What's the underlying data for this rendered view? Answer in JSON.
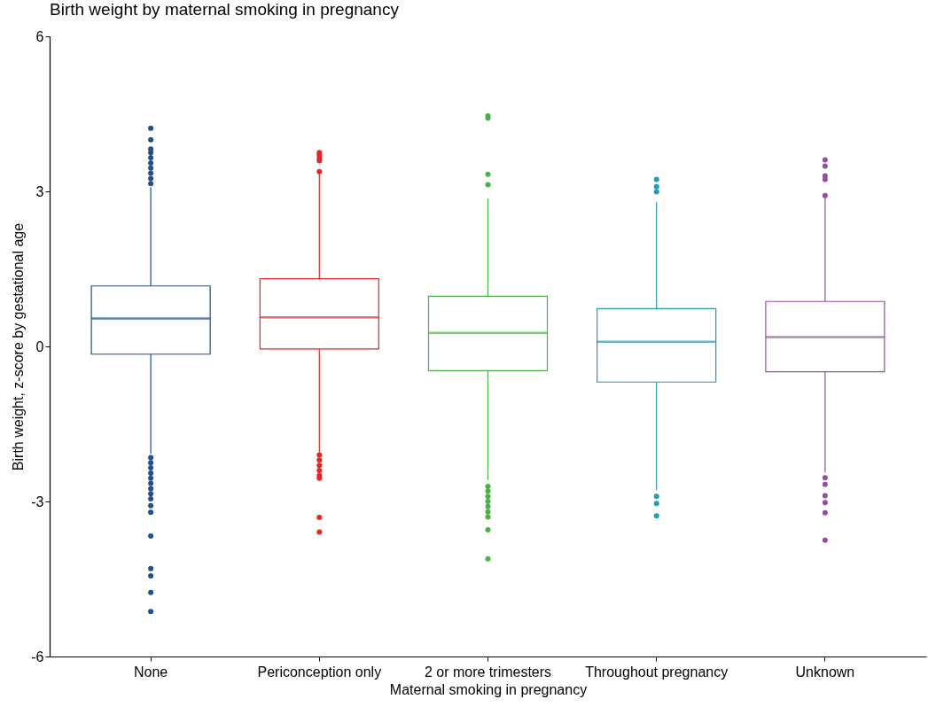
{
  "chart_data": {
    "type": "box",
    "title": "Birth weight by maternal smoking in pregnancy",
    "xlabel": "Maternal smoking in pregnancy",
    "ylabel": "Birth weight, z-score by gestational age",
    "categories": [
      "None",
      "Periconception only",
      "2 or more trimesters",
      "Throughout pregnancy",
      "Unknown"
    ],
    "colors": [
      "#204f8b",
      "#e32726",
      "#4daf4a",
      "#2b98b3",
      "#944f9f"
    ],
    "boxes": [
      {
        "low": -2.08,
        "q1": -0.15,
        "median": 0.54,
        "q3": 1.17,
        "high": 3.08,
        "outliers": [
          4.22,
          4.0,
          3.82,
          3.75,
          3.65,
          3.55,
          3.45,
          3.35,
          3.25,
          3.15,
          -2.15,
          -2.25,
          -2.35,
          -2.45,
          -2.55,
          -2.65,
          -2.75,
          -2.85,
          -2.95,
          -3.08,
          -3.21,
          -3.67,
          -4.3,
          -4.44,
          -4.76,
          -5.13
        ]
      },
      {
        "low": -2.05,
        "q1": -0.05,
        "median": 0.56,
        "q3": 1.31,
        "high": 3.35,
        "outliers": [
          3.75,
          3.7,
          3.64,
          3.59,
          3.38,
          -2.1,
          -2.2,
          -2.3,
          -2.4,
          -2.5,
          -2.55,
          -3.31,
          -3.59
        ]
      },
      {
        "low": -2.59,
        "q1": -0.47,
        "median": 0.26,
        "q3": 0.97,
        "high": 2.86,
        "outliers": [
          4.46,
          4.42,
          3.33,
          3.13,
          -2.71,
          -2.8,
          -2.9,
          -3.0,
          -3.1,
          -3.2,
          -3.3,
          -3.55,
          -4.11
        ]
      },
      {
        "low": -2.78,
        "q1": -0.69,
        "median": 0.09,
        "q3": 0.73,
        "high": 2.8,
        "outliers": [
          3.23,
          3.09,
          2.99,
          -2.9,
          -3.04,
          -3.28
        ]
      },
      {
        "low": -2.44,
        "q1": -0.49,
        "median": 0.18,
        "q3": 0.87,
        "high": 2.88,
        "outliers": [
          3.61,
          3.49,
          3.3,
          3.23,
          2.92,
          -2.54,
          -2.67,
          -2.89,
          -3.02,
          -3.22,
          -3.75
        ]
      }
    ],
    "ylim": [
      -6,
      6
    ],
    "yticks": [
      -6,
      -3,
      0,
      3,
      6
    ]
  }
}
